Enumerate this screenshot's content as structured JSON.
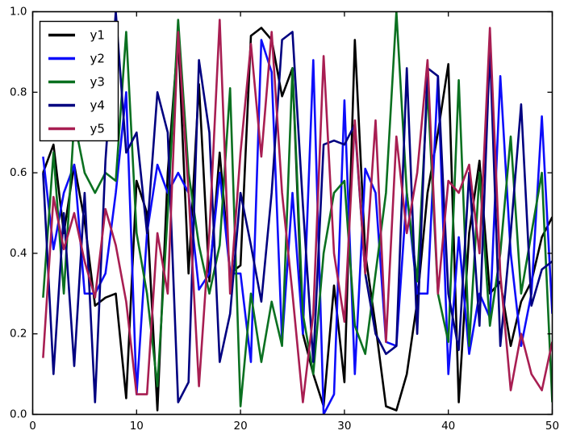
{
  "figure": {
    "background": "#ffffff",
    "frame_color": "#000000"
  },
  "axes": {
    "xtick_labels": [
      "0",
      "10",
      "20",
      "30",
      "40",
      "50"
    ],
    "ytick_labels": [
      "0.0",
      "0.2",
      "0.4",
      "0.6",
      "0.8",
      "1.0"
    ]
  },
  "legend": {
    "position": "upper-left",
    "labels": [
      "y1",
      "y2",
      "y3",
      "y4",
      "y5"
    ]
  },
  "chart_data": {
    "type": "line",
    "title": "",
    "xlabel": "",
    "ylabel": "",
    "xlim": [
      0,
      50
    ],
    "ylim": [
      0,
      1
    ],
    "xticks": [
      0,
      10,
      20,
      30,
      40,
      50
    ],
    "yticks": [
      0,
      0.2,
      0.4,
      0.6,
      0.8,
      1.0
    ],
    "grid": false,
    "legend_position": "upper-left",
    "x": [
      1,
      2,
      3,
      4,
      5,
      6,
      7,
      8,
      9,
      10,
      11,
      12,
      13,
      14,
      15,
      16,
      17,
      18,
      19,
      20,
      21,
      22,
      23,
      24,
      25,
      26,
      27,
      28,
      29,
      30,
      31,
      32,
      33,
      34,
      35,
      36,
      37,
      38,
      39,
      40,
      41,
      42,
      43,
      44,
      45,
      46,
      47,
      48,
      49,
      50
    ],
    "series": [
      {
        "name": "y1",
        "color": "#000000",
        "values": [
          0.6,
          0.67,
          0.45,
          0.62,
          0.48,
          0.27,
          0.29,
          0.3,
          0.04,
          0.58,
          0.5,
          0.01,
          0.6,
          0.94,
          0.35,
          0.82,
          0.33,
          0.65,
          0.35,
          0.37,
          0.94,
          0.96,
          0.93,
          0.79,
          0.86,
          0.2,
          0.1,
          0.02,
          0.32,
          0.08,
          0.93,
          0.4,
          0.22,
          0.02,
          0.01,
          0.1,
          0.28,
          0.55,
          0.7,
          0.87,
          0.03,
          0.45,
          0.63,
          0.3,
          0.33,
          0.17,
          0.28,
          0.33,
          0.44,
          0.49
        ]
      },
      {
        "name": "y2",
        "color": "#0d0dfa",
        "values": [
          0.64,
          0.41,
          0.55,
          0.62,
          0.3,
          0.3,
          0.35,
          0.55,
          0.8,
          0.05,
          0.45,
          0.62,
          0.55,
          0.6,
          0.55,
          0.31,
          0.35,
          0.6,
          0.35,
          0.35,
          0.13,
          0.93,
          0.85,
          0.18,
          0.55,
          0.2,
          0.88,
          0.0,
          0.05,
          0.78,
          0.1,
          0.61,
          0.55,
          0.18,
          0.17,
          0.55,
          0.3,
          0.3,
          0.84,
          0.1,
          0.44,
          0.15,
          0.3,
          0.24,
          0.84,
          0.4,
          0.17,
          0.3,
          0.74,
          0.25
        ]
      },
      {
        "name": "y3",
        "color": "#0a7020",
        "values": [
          0.29,
          0.65,
          0.3,
          0.73,
          0.6,
          0.55,
          0.6,
          0.58,
          0.95,
          0.45,
          0.3,
          0.07,
          0.5,
          0.98,
          0.6,
          0.42,
          0.3,
          0.42,
          0.81,
          0.02,
          0.3,
          0.13,
          0.28,
          0.17,
          0.86,
          0.25,
          0.1,
          0.4,
          0.55,
          0.58,
          0.22,
          0.15,
          0.35,
          0.55,
          1.0,
          0.55,
          0.33,
          0.81,
          0.3,
          0.18,
          0.83,
          0.17,
          0.6,
          0.22,
          0.4,
          0.69,
          0.3,
          0.45,
          0.6,
          0.03
        ]
      },
      {
        "name": "y4",
        "color": "#000080",
        "values": [
          0.6,
          0.1,
          0.5,
          0.12,
          0.55,
          0.03,
          0.63,
          1.0,
          0.65,
          0.7,
          0.45,
          0.8,
          0.7,
          0.03,
          0.08,
          0.88,
          0.7,
          0.13,
          0.25,
          0.55,
          0.42,
          0.28,
          0.55,
          0.93,
          0.95,
          0.52,
          0.13,
          0.67,
          0.68,
          0.67,
          0.72,
          0.35,
          0.2,
          0.15,
          0.17,
          0.86,
          0.2,
          0.86,
          0.84,
          0.3,
          0.16,
          0.6,
          0.22,
          0.91,
          0.17,
          0.45,
          0.77,
          0.27,
          0.36,
          0.38
        ]
      },
      {
        "name": "y5",
        "color": "#a81e52",
        "values": [
          0.14,
          0.54,
          0.41,
          0.5,
          0.38,
          0.29,
          0.51,
          0.42,
          0.28,
          0.05,
          0.05,
          0.45,
          0.3,
          0.95,
          0.55,
          0.07,
          0.45,
          0.98,
          0.3,
          0.65,
          0.92,
          0.64,
          0.95,
          0.55,
          0.3,
          0.03,
          0.25,
          0.89,
          0.4,
          0.23,
          0.73,
          0.35,
          0.73,
          0.18,
          0.69,
          0.45,
          0.6,
          0.88,
          0.3,
          0.58,
          0.55,
          0.62,
          0.4,
          0.96,
          0.35,
          0.06,
          0.2,
          0.1,
          0.06,
          0.18
        ]
      }
    ]
  }
}
